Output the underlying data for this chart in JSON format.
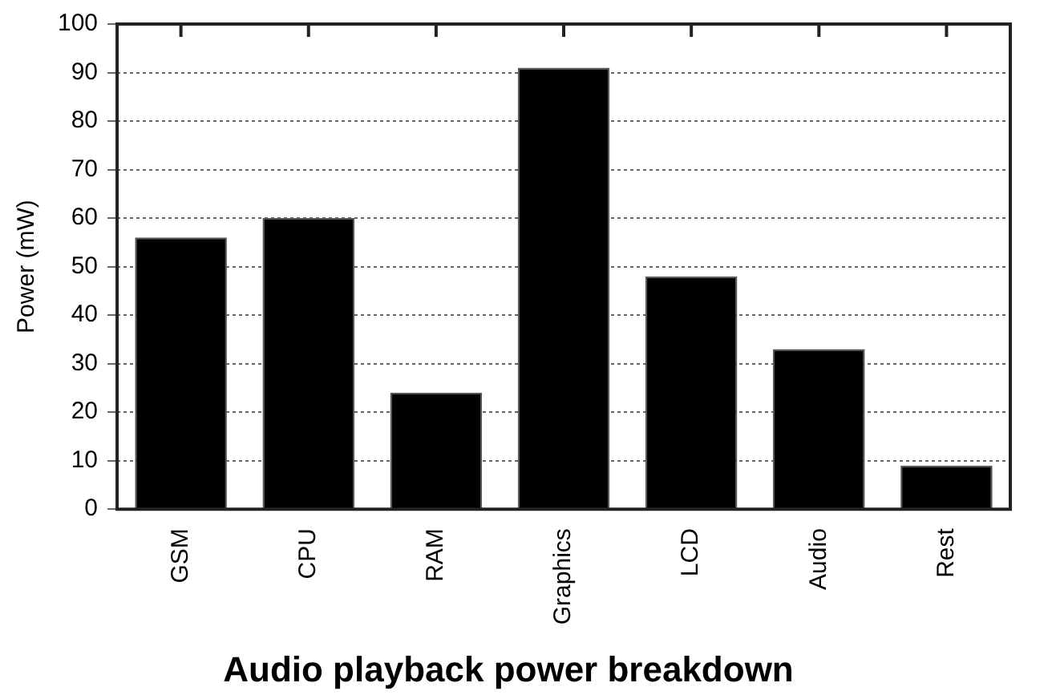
{
  "chart_data": {
    "type": "bar",
    "title": "Audio playback power breakdown",
    "ylabel": "Power (mW)",
    "categories": [
      "GSM",
      "CPU",
      "RAM",
      "Graphics",
      "LCD",
      "Audio",
      "Rest"
    ],
    "values": [
      56,
      60,
      24,
      91,
      48,
      33,
      9
    ],
    "color": "#000000",
    "ylim": [
      0,
      100
    ],
    "yticks": [
      0,
      10,
      20,
      30,
      40,
      50,
      60,
      70,
      80,
      90,
      100
    ],
    "grid": "y",
    "legend": false
  }
}
